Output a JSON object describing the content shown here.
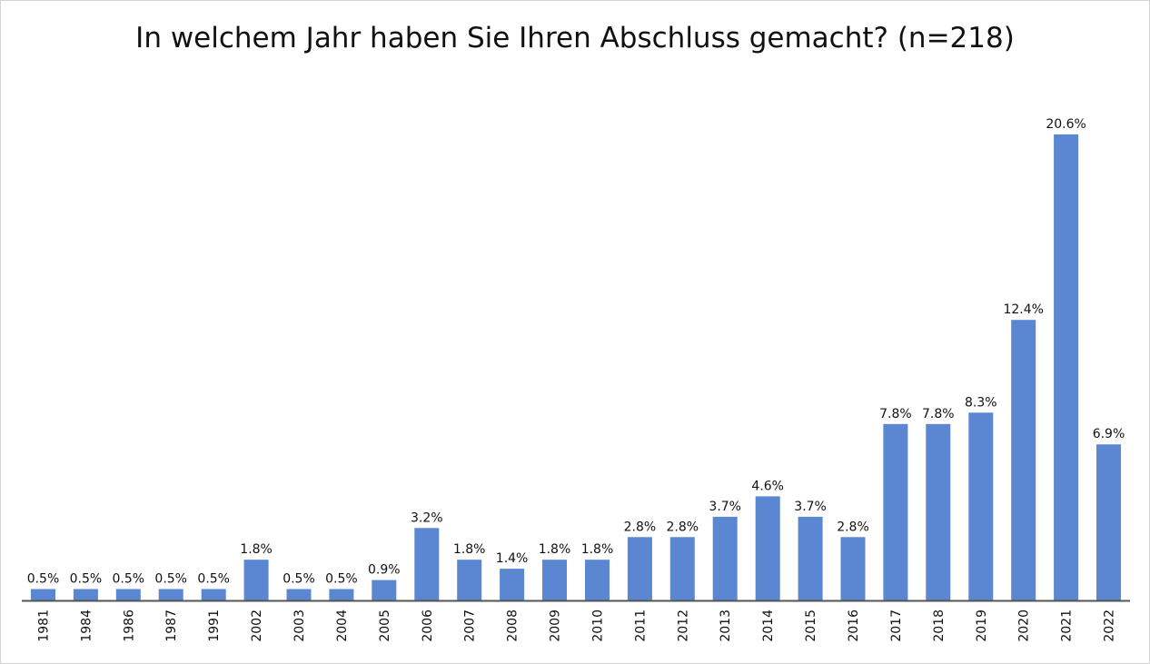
{
  "chart_data": {
    "type": "bar",
    "title": "In welchem Jahr haben Sie Ihren Abschluss gemacht? (n=218)",
    "xlabel": "",
    "ylabel": "",
    "categories": [
      "1981",
      "1984",
      "1986",
      "1987",
      "1991",
      "2002",
      "2003",
      "2004",
      "2005",
      "2006",
      "2007",
      "2008",
      "2009",
      "2010",
      "2011",
      "2012",
      "2013",
      "2014",
      "2015",
      "2016",
      "2017",
      "2018",
      "2019",
      "2020",
      "2021",
      "2022"
    ],
    "values": [
      0.5,
      0.5,
      0.5,
      0.5,
      0.5,
      1.8,
      0.5,
      0.5,
      0.9,
      3.2,
      1.8,
      1.4,
      1.8,
      1.8,
      2.8,
      2.8,
      3.7,
      4.6,
      3.7,
      2.8,
      7.8,
      7.8,
      8.3,
      12.4,
      20.6,
      6.9
    ],
    "value_labels": [
      "0.5%",
      "0.5%",
      "0.5%",
      "0.5%",
      "0.5%",
      "1.8%",
      "0.5%",
      "0.5%",
      "0.9%",
      "3.2%",
      "1.8%",
      "1.4%",
      "1.8%",
      "1.8%",
      "2.8%",
      "2.8%",
      "3.7%",
      "4.6%",
      "3.7%",
      "2.8%",
      "7.8%",
      "7.8%",
      "8.3%",
      "12.4%",
      "20.6%",
      "6.9%"
    ],
    "unit": "%",
    "grid": false,
    "legend": "none",
    "bar_color": "#5b86d1",
    "axis_color": "#555555"
  }
}
